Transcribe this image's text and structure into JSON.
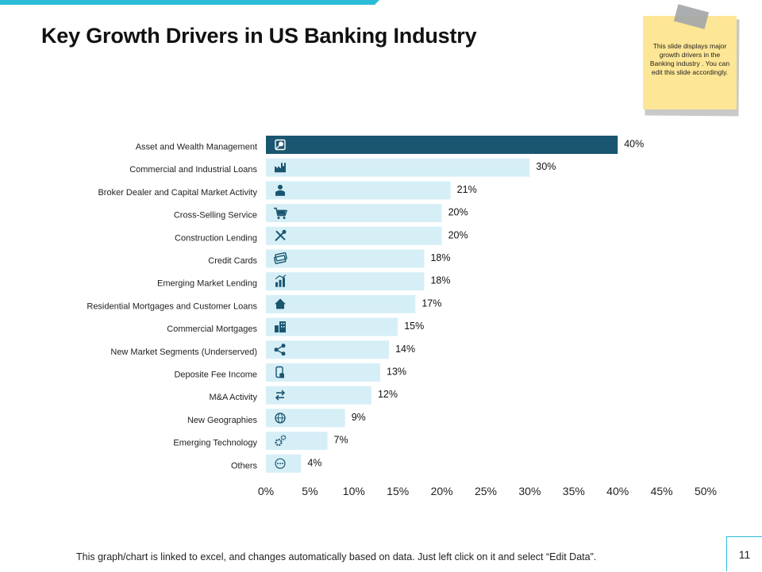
{
  "slide": {
    "title": "Key Growth Drivers in US Banking Industry",
    "note": "This slide displays major growth drivers in the Banking industry . You can edit this slide accordingly.",
    "footnote": "This graph/chart is linked to excel, and changes automatically based on data. Just left click on it and select “Edit Data”.",
    "page_number": "11"
  },
  "colors": {
    "accent": "#2bbcd8",
    "highlight_bar": "#1a5670",
    "bar": "#d6eff7",
    "icon": "#1a5670",
    "note": "#fde695"
  },
  "chart_data": {
    "type": "bar",
    "orientation": "horizontal",
    "title": "",
    "xlabel": "",
    "ylabel": "",
    "categories": [
      "Asset and Wealth Management",
      "Commercial and Industrial Loans",
      "Broker Dealer and Capital Market Activity",
      "Cross-Selling Service",
      "Construction Lending",
      "Credit Cards",
      "Emerging Market Lending",
      "Residential Mortgages and Customer Loans",
      "Commercial Mortgages",
      "New Market Segments (Underserved)",
      "Deposite Fee Income",
      "M&A Activity",
      "New Geographies",
      "Emerging Technology",
      "Others"
    ],
    "values": [
      40,
      30,
      21,
      20,
      20,
      18,
      18,
      17,
      15,
      14,
      13,
      12,
      9,
      7,
      4
    ],
    "data_labels": [
      "40%",
      "30%",
      "21%",
      "20%",
      "20%",
      "18%",
      "18%",
      "17%",
      "15%",
      "14%",
      "13%",
      "12%",
      "9%",
      "7%",
      "4%"
    ],
    "icons": [
      "wealth-icon",
      "factory-icon",
      "broker-icon",
      "cart-icon",
      "tools-icon",
      "credit-card-icon",
      "growth-chart-icon",
      "house-icon",
      "building-icon",
      "network-icon",
      "mobile-payment-icon",
      "arrows-exchange-icon",
      "globe-icon",
      "gears-icon",
      "more-icon"
    ],
    "highlight_index": 0,
    "xlim": [
      0,
      50
    ],
    "xticks": [
      0,
      5,
      10,
      15,
      20,
      25,
      30,
      35,
      40,
      45,
      50
    ],
    "xtick_labels": [
      "0%",
      "5%",
      "10%",
      "15%",
      "20%",
      "25%",
      "30%",
      "35%",
      "40%",
      "45%",
      "50%"
    ],
    "grid": false,
    "legend": "none"
  }
}
